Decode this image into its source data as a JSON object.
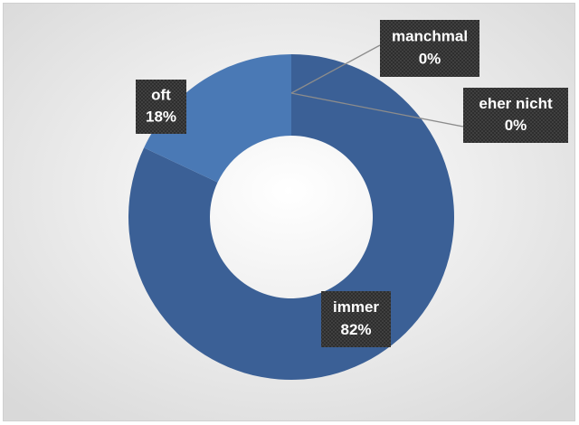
{
  "chart_data": {
    "type": "donut",
    "categories": [
      "immer",
      "oft",
      "manchmal",
      "eher nicht"
    ],
    "values": [
      82,
      18,
      0,
      0
    ],
    "value_labels": [
      "82%",
      "18%",
      "0%",
      "0%"
    ],
    "colors": [
      "#3b6096",
      "#4a79b5",
      "#3f6aa6",
      "#45729f"
    ]
  }
}
